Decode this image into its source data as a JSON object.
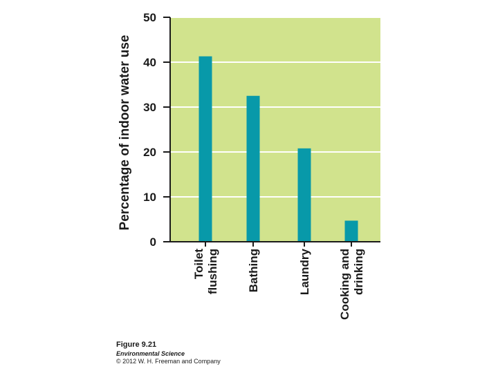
{
  "chart_data": {
    "type": "bar",
    "ylabel": "Percentage of indoor water use",
    "xlabel": "",
    "title": "",
    "categories": [
      [
        "Toilet",
        "flushing"
      ],
      [
        "Bathing"
      ],
      [
        "Laundry"
      ],
      [
        "Cooking and",
        "drinking"
      ]
    ],
    "values": [
      41.3,
      32.5,
      20.8,
      4.7
    ],
    "ylim": [
      0,
      50
    ],
    "yticks": [
      0,
      10,
      20,
      30,
      40,
      50
    ],
    "grid": true,
    "legend": "none",
    "colors": {
      "plot_background": "#d1e38d",
      "bar": "#0899a9",
      "gridline": "#ffffff",
      "axis": "#1a1a1a",
      "text": "#1a1a1a"
    }
  },
  "caption": {
    "figure": "Figure 9.21",
    "book": "Environmental Science",
    "copyright": "© 2012 W. H. Freeman and Company"
  }
}
